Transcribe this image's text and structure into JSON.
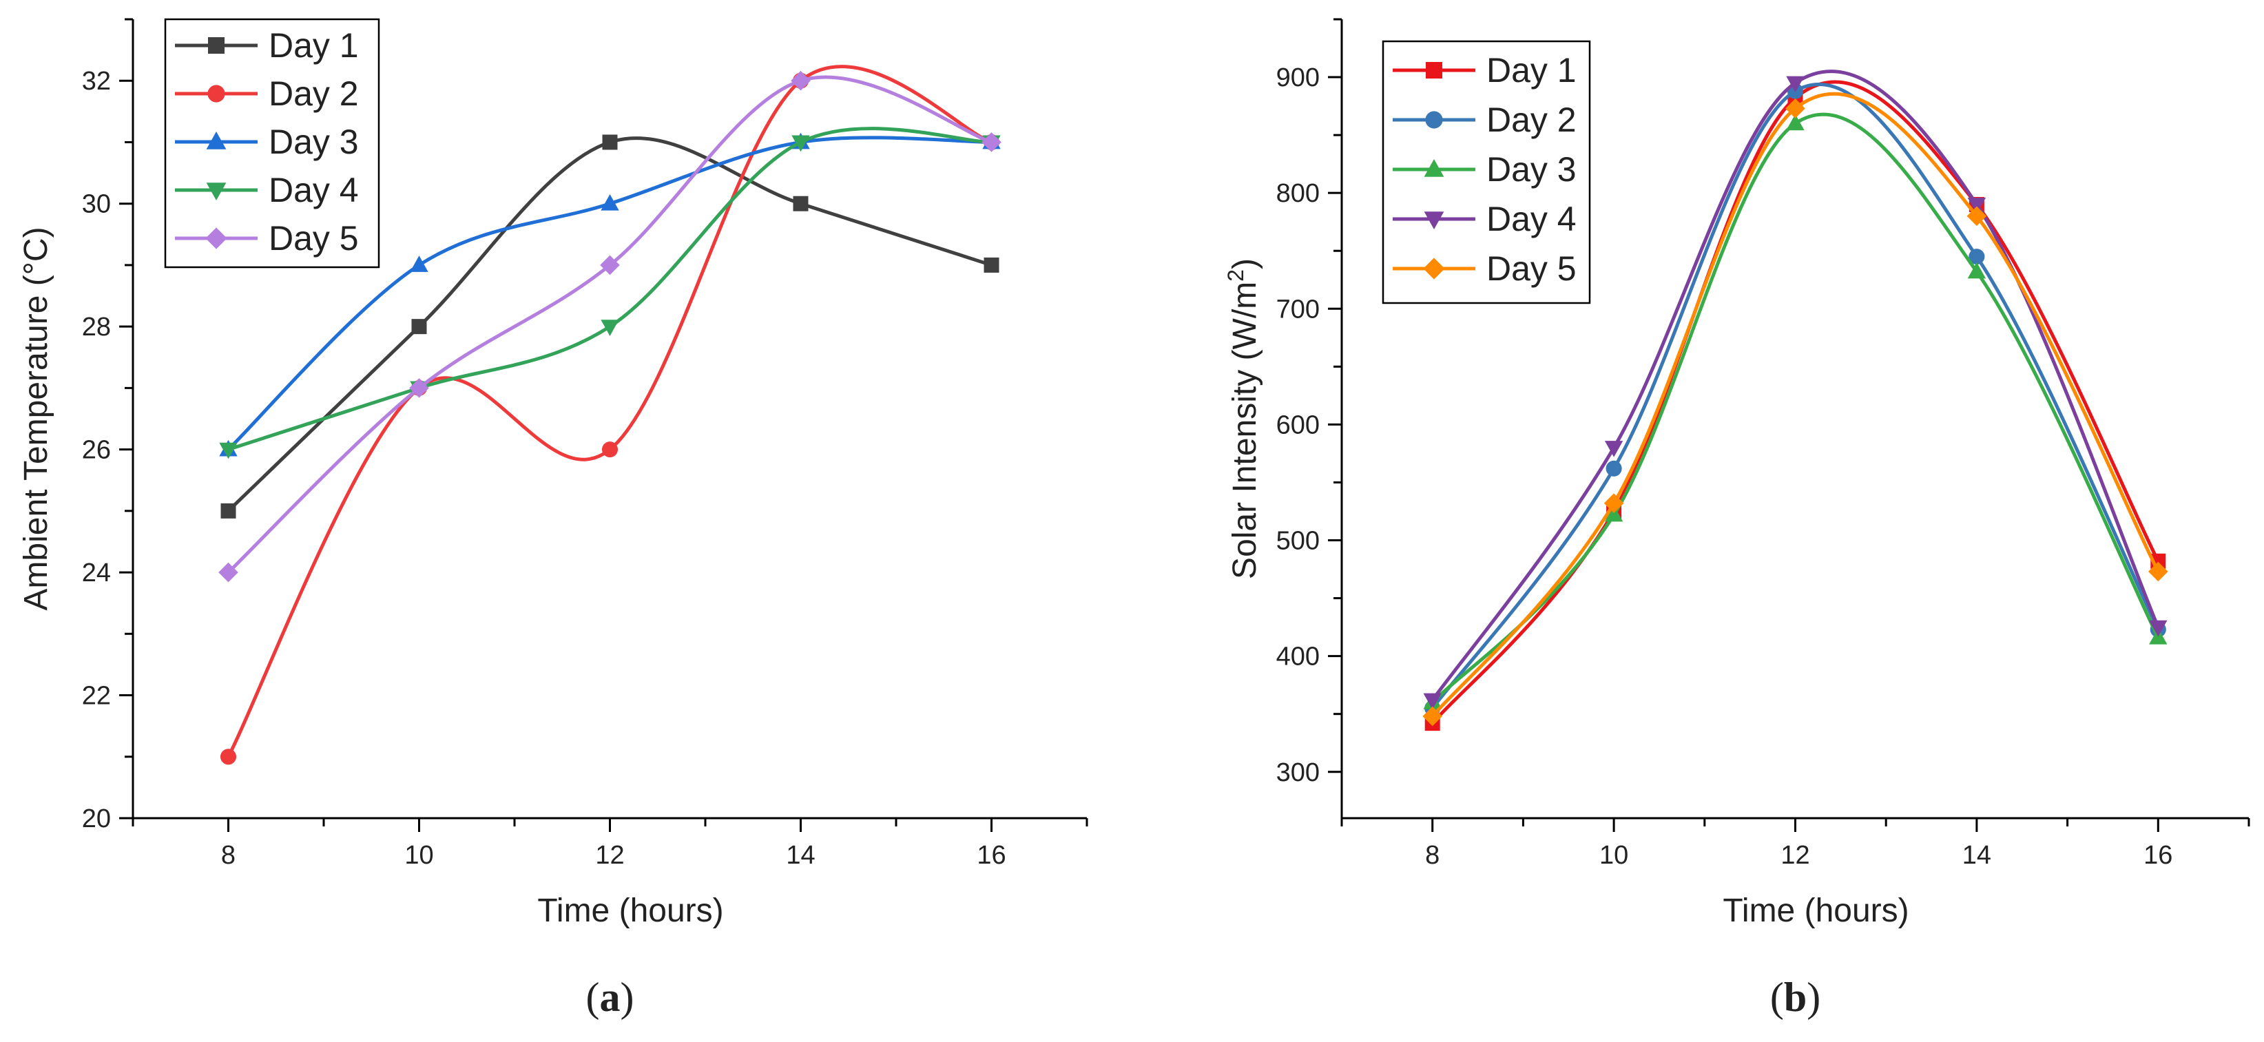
{
  "chart_data": [
    {
      "type": "line",
      "panel_label": "a",
      "title": "",
      "xlabel": "Time (hours)",
      "ylabel": "Ambient Temperature (°C)",
      "xlim": [
        7,
        17
      ],
      "ylim": [
        20,
        33
      ],
      "xticks": [
        8,
        10,
        12,
        14,
        16
      ],
      "yticks": [
        20,
        22,
        24,
        26,
        28,
        30,
        32
      ],
      "x": [
        8,
        10,
        12,
        14,
        16
      ],
      "legend_position": "top-left",
      "series": [
        {
          "name": "Day 1",
          "color": "#404040",
          "marker": "square",
          "values": [
            25,
            28,
            31,
            30,
            29
          ]
        },
        {
          "name": "Day 2",
          "color": "#ee3a3a",
          "marker": "circle",
          "values": [
            21,
            27,
            26,
            32,
            31
          ]
        },
        {
          "name": "Day 3",
          "color": "#1f6fd6",
          "marker": "triangle-up",
          "values": [
            26,
            29,
            30,
            31,
            31
          ]
        },
        {
          "name": "Day 4",
          "color": "#33a35a",
          "marker": "triangle-down",
          "values": [
            26,
            27,
            28,
            31,
            31
          ]
        },
        {
          "name": "Day 5",
          "color": "#b57fe0",
          "marker": "diamond",
          "values": [
            24,
            27,
            29,
            32,
            31
          ]
        }
      ]
    },
    {
      "type": "line",
      "panel_label": "b",
      "title": "",
      "xlabel": "Time (hours)",
      "ylabel": "Solar Intensity (W/m",
      "ylabel_sup": "2",
      "ylabel_end": ")",
      "xlim": [
        7,
        17
      ],
      "ylim": [
        260,
        950
      ],
      "xticks": [
        8,
        10,
        12,
        14,
        16
      ],
      "yticks": [
        300,
        400,
        500,
        600,
        700,
        800,
        900
      ],
      "x": [
        8,
        10,
        12,
        14,
        16
      ],
      "legend_position": "top-left",
      "series": [
        {
          "name": "Day 1",
          "color": "#e8151b",
          "marker": "square",
          "values": [
            342,
            525,
            882,
            790,
            482
          ]
        },
        {
          "name": "Day 2",
          "color": "#3a78b5",
          "marker": "circle",
          "values": [
            355,
            562,
            888,
            745,
            423
          ]
        },
        {
          "name": "Day 3",
          "color": "#39ac4a",
          "marker": "triangle-up",
          "values": [
            360,
            522,
            860,
            732,
            416
          ]
        },
        {
          "name": "Day 4",
          "color": "#7b3f9e",
          "marker": "triangle-down",
          "values": [
            362,
            580,
            895,
            790,
            425
          ]
        },
        {
          "name": "Day 5",
          "color": "#ff8a00",
          "marker": "diamond",
          "values": [
            348,
            532,
            873,
            780,
            473
          ]
        }
      ]
    }
  ]
}
